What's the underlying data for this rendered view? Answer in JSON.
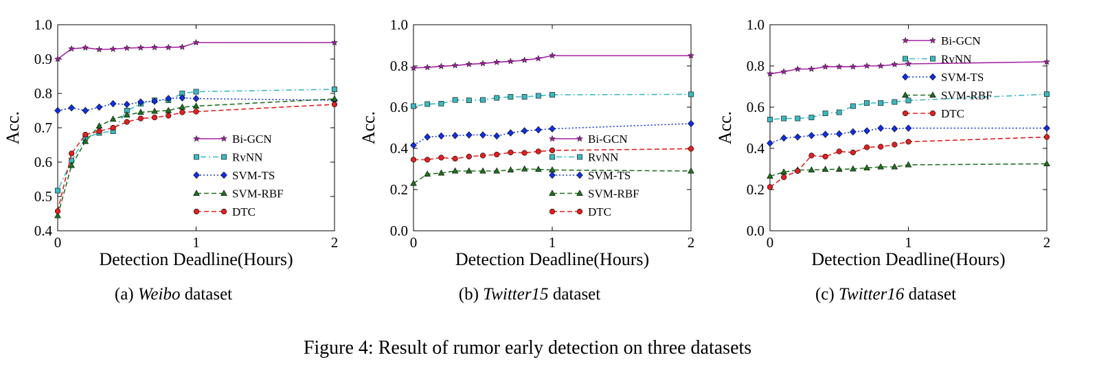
{
  "caption": "Figure 4: Result of rumor early detection on three datasets",
  "series_styles": [
    {
      "name": "Bi-GCN",
      "color": "#a020a0",
      "dash": "",
      "marker": "star"
    },
    {
      "name": "RvNN",
      "color": "#3cb8c0",
      "dash": "2,4,8,4",
      "marker": "square"
    },
    {
      "name": "SVM-TS",
      "color": "#1030e0",
      "dash": "2,3",
      "marker": "diamond"
    },
    {
      "name": "SVM-RBF",
      "color": "#207020",
      "dash": "7,4",
      "marker": "triangle"
    },
    {
      "name": "DTC",
      "color": "#e02020",
      "dash": "7,4",
      "marker": "circle"
    }
  ],
  "chart_data": [
    {
      "type": "line",
      "subcaption_prefix": "(a)",
      "subcaption_dataset": "Weibo",
      "subcaption_suffix": "dataset",
      "xlabel": "Detection Deadline(Hours)",
      "ylabel": "Acc.",
      "xlim": [
        0,
        2
      ],
      "ylim": [
        0.4,
        1.0
      ],
      "xticks": [
        0,
        1,
        2
      ],
      "xtick_labels": [
        "0",
        "1",
        "2"
      ],
      "yticks": [
        0.4,
        0.5,
        0.6,
        0.7,
        0.8,
        0.9,
        1.0
      ],
      "ytick_labels": [
        "0.4",
        "0.5",
        "0.6",
        "0.7",
        "0.8",
        "0.9",
        "1.0"
      ],
      "legend": "lower-right",
      "x": [
        0,
        0.1,
        0.2,
        0.3,
        0.4,
        0.5,
        0.6,
        0.7,
        0.8,
        0.9,
        1.0,
        2.0
      ],
      "series": [
        {
          "name": "Bi-GCN",
          "values": [
            0.9,
            0.93,
            0.933,
            0.928,
            0.929,
            0.932,
            0.933,
            0.934,
            0.934,
            0.935,
            0.948,
            0.948
          ]
        },
        {
          "name": "RvNN",
          "values": [
            0.517,
            0.605,
            0.67,
            0.685,
            0.69,
            0.75,
            0.77,
            0.78,
            0.78,
            0.8,
            0.805,
            0.812
          ]
        },
        {
          "name": "SVM-TS",
          "values": [
            0.75,
            0.758,
            0.75,
            0.76,
            0.77,
            0.768,
            0.775,
            0.777,
            0.785,
            0.787,
            0.785,
            0.78
          ]
        },
        {
          "name": "SVM-RBF",
          "values": [
            0.444,
            0.59,
            0.66,
            0.705,
            0.725,
            0.737,
            0.745,
            0.748,
            0.75,
            0.76,
            0.763,
            0.784
          ]
        },
        {
          "name": "DTC",
          "values": [
            0.457,
            0.625,
            0.68,
            0.69,
            0.7,
            0.717,
            0.727,
            0.73,
            0.735,
            0.745,
            0.747,
            0.768
          ]
        }
      ]
    },
    {
      "type": "line",
      "subcaption_prefix": "(b)",
      "subcaption_dataset": "Twitter15",
      "subcaption_suffix": "dataset",
      "xlabel": "Detection Deadline(Hours)",
      "ylabel": "Acc.",
      "xlim": [
        0,
        2
      ],
      "ylim": [
        0.0,
        1.0
      ],
      "xticks": [
        0,
        1,
        2
      ],
      "xtick_labels": [
        "0",
        "1",
        "2"
      ],
      "yticks": [
        0.0,
        0.2,
        0.4,
        0.6,
        0.8,
        1.0
      ],
      "ytick_labels": [
        "0.0",
        "0.2",
        "0.4",
        "0.6",
        "0.8",
        "1.0"
      ],
      "legend": "lower-right",
      "x": [
        0,
        0.1,
        0.2,
        0.3,
        0.4,
        0.5,
        0.6,
        0.7,
        0.8,
        0.9,
        1.0,
        2.0
      ],
      "series": [
        {
          "name": "Bi-GCN",
          "values": [
            0.79,
            0.793,
            0.798,
            0.802,
            0.808,
            0.812,
            0.818,
            0.822,
            0.828,
            0.836,
            0.85,
            0.85
          ]
        },
        {
          "name": "RvNN",
          "values": [
            0.605,
            0.615,
            0.617,
            0.635,
            0.633,
            0.635,
            0.645,
            0.65,
            0.65,
            0.655,
            0.66,
            0.662
          ]
        },
        {
          "name": "SVM-TS",
          "values": [
            0.415,
            0.455,
            0.46,
            0.462,
            0.465,
            0.465,
            0.46,
            0.475,
            0.485,
            0.49,
            0.495,
            0.52
          ]
        },
        {
          "name": "SVM-RBF",
          "values": [
            0.23,
            0.275,
            0.28,
            0.29,
            0.29,
            0.29,
            0.29,
            0.295,
            0.3,
            0.298,
            0.295,
            0.29
          ]
        },
        {
          "name": "DTC",
          "values": [
            0.345,
            0.345,
            0.355,
            0.35,
            0.36,
            0.365,
            0.37,
            0.38,
            0.378,
            0.385,
            0.39,
            0.398
          ]
        }
      ]
    },
    {
      "type": "line",
      "subcaption_prefix": "(c)",
      "subcaption_dataset": "Twitter16",
      "subcaption_suffix": "dataset",
      "xlabel": "Detection Deadline(Hours)",
      "ylabel": "Acc.",
      "xlim": [
        0,
        2
      ],
      "ylim": [
        0.0,
        1.0
      ],
      "xticks": [
        0,
        1,
        2
      ],
      "xtick_labels": [
        "0",
        "1",
        "2"
      ],
      "yticks": [
        0.0,
        0.2,
        0.4,
        0.6,
        0.8,
        1.0
      ],
      "ytick_labels": [
        "0.0",
        "0.2",
        "0.4",
        "0.6",
        "0.8",
        "1.0"
      ],
      "legend": "upper-right",
      "x": [
        0,
        0.1,
        0.2,
        0.3,
        0.4,
        0.5,
        0.6,
        0.7,
        0.8,
        0.9,
        1.0,
        2.0
      ],
      "series": [
        {
          "name": "Bi-GCN",
          "values": [
            0.762,
            0.772,
            0.785,
            0.785,
            0.796,
            0.796,
            0.796,
            0.8,
            0.8,
            0.807,
            0.81,
            0.82
          ]
        },
        {
          "name": "RvNN",
          "values": [
            0.54,
            0.545,
            0.545,
            0.55,
            0.57,
            0.575,
            0.605,
            0.62,
            0.62,
            0.625,
            0.632,
            0.663
          ]
        },
        {
          "name": "SVM-TS",
          "values": [
            0.425,
            0.45,
            0.455,
            0.462,
            0.468,
            0.47,
            0.48,
            0.485,
            0.498,
            0.495,
            0.498,
            0.498
          ]
        },
        {
          "name": "SVM-RBF",
          "values": [
            0.265,
            0.285,
            0.295,
            0.295,
            0.298,
            0.298,
            0.3,
            0.305,
            0.31,
            0.31,
            0.32,
            0.325
          ]
        },
        {
          "name": "DTC",
          "values": [
            0.212,
            0.26,
            0.29,
            0.365,
            0.36,
            0.385,
            0.38,
            0.405,
            0.408,
            0.418,
            0.432,
            0.455
          ]
        }
      ]
    }
  ]
}
